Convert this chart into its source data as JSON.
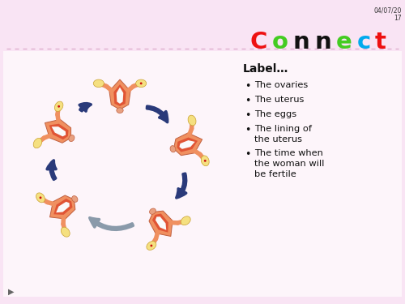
{
  "bg_color": "#f9e4f4",
  "content_bg": "#ffffff",
  "date_text": "04/07/20\n17",
  "title_letters": [
    {
      "char": "C",
      "color": "#ee1111"
    },
    {
      "char": "o",
      "color": "#44cc22"
    },
    {
      "char": "n",
      "color": "#111111"
    },
    {
      "char": "n",
      "color": "#111111"
    },
    {
      "char": "e",
      "color": "#44cc22"
    },
    {
      "char": "c",
      "color": "#00aaee"
    },
    {
      "char": "t",
      "color": "#ee1111"
    }
  ],
  "label_title": "Label…",
  "bullet_items": [
    "The ovaries",
    "The uterus",
    "The eggs",
    "The lining of\nthe uterus",
    "The time when\nthe woman will\nbe fertile"
  ],
  "divider_color": "#ddaacc",
  "arrow_color": "#2a3a7a",
  "arrow_color2": "#8a9aaa",
  "uterus_body": "#f09060",
  "uterus_inner": "#e05535",
  "uterus_tube": "#f0a070",
  "uterus_ovary": "#f5e080",
  "uterus_ovary_edge": "#c8a030",
  "uterus_cervix": "#e8a080"
}
